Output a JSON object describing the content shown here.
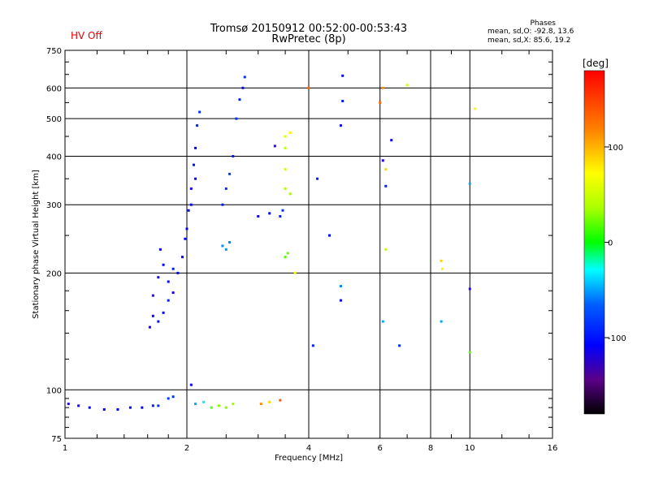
{
  "header": {
    "title_line1": "Tromsø 20150912 00:52:00-00:53:43",
    "title_line2": "RwPretec (8p)",
    "status": "HV Off",
    "status_color": "#e00000"
  },
  "phase_stats": {
    "title": "Phases",
    "line_o": "mean, sd,O: -92.8, 13.6",
    "line_x": "mean, sd,X:  85.6, 19.2"
  },
  "colorbar": {
    "label": "[deg]",
    "ticks": [
      "100",
      "0",
      "-100"
    ],
    "range": [
      -180,
      180
    ]
  },
  "chart_data": {
    "type": "scatter",
    "xlabel": "Frequency [MHz]",
    "ylabel": "Stationary phase Virtual Height [km]",
    "xscale": "log",
    "yscale": "log",
    "xlim": [
      1,
      16
    ],
    "ylim": [
      75,
      750
    ],
    "x_ticks": [
      "1",
      "2",
      "4",
      "6",
      "8",
      "10",
      "16"
    ],
    "y_ticks": [
      "75",
      "100",
      "200",
      "300",
      "400",
      "500",
      "600",
      "750"
    ],
    "grid": true,
    "series": [
      {
        "points": [
          [
            1.02,
            92,
            -120
          ],
          [
            1.08,
            91,
            -115
          ],
          [
            1.15,
            90,
            -110
          ],
          [
            1.25,
            89,
            -108
          ],
          [
            1.35,
            89,
            -112
          ],
          [
            1.45,
            90,
            -105
          ],
          [
            1.55,
            90,
            -110
          ],
          [
            1.65,
            91,
            -100
          ],
          [
            1.7,
            91,
            -95
          ],
          [
            1.62,
            145,
            -115
          ],
          [
            1.65,
            155,
            -110
          ],
          [
            1.7,
            150,
            -105
          ],
          [
            1.75,
            158,
            -108
          ],
          [
            1.8,
            170,
            -100
          ],
          [
            1.85,
            178,
            -110
          ],
          [
            1.9,
            200,
            -105
          ],
          [
            1.95,
            220,
            -112
          ],
          [
            1.98,
            245,
            -108
          ],
          [
            2.0,
            260,
            -110
          ],
          [
            2.02,
            290,
            -105
          ],
          [
            2.05,
            330,
            -115
          ],
          [
            2.08,
            380,
            -102
          ],
          [
            2.1,
            420,
            -108
          ],
          [
            2.12,
            480,
            -100
          ],
          [
            2.15,
            520,
            -95
          ],
          [
            2.05,
            300,
            -110
          ],
          [
            2.1,
            350,
            -112
          ],
          [
            1.65,
            175,
            -120
          ],
          [
            1.7,
            195,
            -115
          ],
          [
            1.72,
            230,
            -110
          ],
          [
            1.75,
            210,
            -105
          ],
          [
            1.8,
            190,
            -108
          ],
          [
            1.85,
            205,
            -100
          ],
          [
            2.45,
            300,
            -100
          ],
          [
            2.5,
            330,
            -95
          ],
          [
            2.55,
            360,
            -90
          ],
          [
            2.6,
            400,
            -100
          ],
          [
            2.65,
            500,
            -95
          ],
          [
            2.7,
            560,
            -100
          ],
          [
            2.75,
            600,
            -105
          ],
          [
            2.78,
            640,
            -95
          ],
          [
            2.45,
            235,
            -70
          ],
          [
            2.5,
            230,
            -65
          ],
          [
            2.55,
            240,
            -70
          ],
          [
            3.0,
            280,
            -110
          ],
          [
            3.2,
            285,
            -105
          ],
          [
            3.3,
            425,
            -120
          ],
          [
            3.4,
            280,
            -100
          ],
          [
            3.45,
            290,
            -95
          ],
          [
            4.2,
            350,
            -100
          ],
          [
            4.5,
            250,
            -105
          ],
          [
            4.8,
            480,
            -110
          ],
          [
            4.85,
            555,
            -100
          ],
          [
            4.85,
            645,
            -105
          ],
          [
            4.8,
            185,
            -70
          ],
          [
            4.8,
            170,
            -110
          ],
          [
            4.1,
            130,
            -100
          ],
          [
            6.1,
            390,
            -115
          ],
          [
            6.2,
            335,
            -100
          ],
          [
            6.4,
            440,
            -110
          ],
          [
            6.1,
            150,
            -60
          ],
          [
            6.7,
            130,
            -95
          ],
          [
            10.0,
            182,
            -120
          ],
          [
            2.1,
            92,
            -60
          ],
          [
            2.2,
            93,
            -40
          ],
          [
            2.3,
            90,
            60
          ],
          [
            2.4,
            91,
            75
          ],
          [
            2.5,
            90,
            70
          ],
          [
            2.6,
            92,
            80
          ],
          [
            3.05,
            92,
            140
          ],
          [
            3.2,
            93,
            120
          ],
          [
            3.4,
            94,
            155
          ],
          [
            3.5,
            420,
            90
          ],
          [
            3.5,
            450,
            100
          ],
          [
            3.5,
            370,
            95
          ],
          [
            3.5,
            330,
            85
          ],
          [
            3.6,
            460,
            110
          ],
          [
            3.6,
            320,
            80
          ],
          [
            3.5,
            220,
            60
          ],
          [
            3.55,
            225,
            65
          ],
          [
            3.7,
            200,
            110
          ],
          [
            4.0,
            600,
            150
          ],
          [
            6.1,
            600,
            140
          ],
          [
            6.0,
            550,
            150
          ],
          [
            6.2,
            370,
            120
          ],
          [
            6.2,
            230,
            90
          ],
          [
            7.0,
            610,
            95
          ],
          [
            8.5,
            215,
            120
          ],
          [
            8.55,
            205,
            110
          ],
          [
            10.3,
            530,
            105
          ],
          [
            10.0,
            125,
            60
          ],
          [
            8.5,
            150,
            -60
          ],
          [
            10.0,
            340,
            -60
          ],
          [
            1.8,
            95,
            -90
          ],
          [
            1.85,
            96,
            -95
          ],
          [
            2.05,
            103,
            -110
          ]
        ]
      }
    ]
  }
}
